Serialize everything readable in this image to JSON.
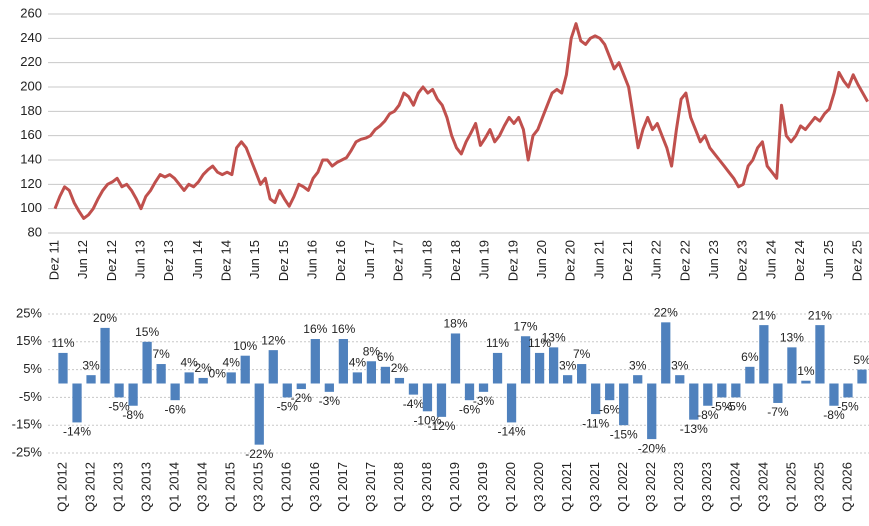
{
  "chart_data": [
    {
      "type": "line",
      "color": "#c0504d",
      "grid": true,
      "ylim": [
        80,
        260
      ],
      "yticks": [
        80,
        100,
        120,
        140,
        160,
        180,
        200,
        220,
        240,
        260
      ],
      "categories": [
        "Dez 11",
        null,
        null,
        null,
        null,
        null,
        "Jun 12",
        null,
        null,
        null,
        null,
        null,
        "Dez 12",
        null,
        null,
        null,
        null,
        null,
        "Jun 13",
        null,
        null,
        null,
        null,
        null,
        "Dez 13",
        null,
        null,
        null,
        null,
        null,
        "Jun 14",
        null,
        null,
        null,
        null,
        null,
        "Dez 14",
        null,
        null,
        null,
        null,
        null,
        "Jun 15",
        null,
        null,
        null,
        null,
        null,
        "Dez 15",
        null,
        null,
        null,
        null,
        null,
        "Jun 16",
        null,
        null,
        null,
        null,
        null,
        "Dez 16",
        null,
        null,
        null,
        null,
        null,
        "Jun 17",
        null,
        null,
        null,
        null,
        null,
        "Dez 17",
        null,
        null,
        null,
        null,
        null,
        "Jun 18",
        null,
        null,
        null,
        null,
        null,
        "Dez 18",
        null,
        null,
        null,
        null,
        null,
        "Jun 19",
        null,
        null,
        null,
        null,
        null,
        "Dez 19",
        null,
        null,
        null,
        null,
        null,
        "Jun 20",
        null,
        null,
        null,
        null,
        null,
        "Dez 20",
        null,
        null,
        null,
        null,
        null,
        "Jun 21",
        null,
        null,
        null,
        null,
        null,
        "Dez 21",
        null,
        null,
        null,
        null,
        null,
        "Jun 22",
        null,
        null,
        null,
        null,
        null,
        "Dez 22",
        null,
        null,
        null,
        null,
        null,
        "Jun 23",
        null,
        null,
        null,
        null,
        null,
        "Dez 23",
        null,
        null,
        null,
        null,
        null,
        "Jun 24",
        null,
        null,
        null,
        null,
        null,
        "Dez 24",
        null,
        null,
        null,
        null,
        null,
        "Jun 25",
        null,
        null,
        null,
        null,
        null,
        "Dez 25",
        null,
        null
      ],
      "values": [
        100,
        110,
        118,
        115,
        105,
        98,
        92,
        95,
        100,
        108,
        115,
        120,
        122,
        125,
        118,
        120,
        115,
        108,
        100,
        110,
        115,
        122,
        128,
        126,
        128,
        125,
        120,
        115,
        120,
        118,
        122,
        128,
        132,
        135,
        130,
        128,
        130,
        128,
        150,
        155,
        150,
        140,
        130,
        120,
        125,
        108,
        105,
        115,
        108,
        102,
        110,
        120,
        118,
        115,
        125,
        130,
        140,
        140,
        135,
        138,
        140,
        142,
        148,
        155,
        157,
        158,
        160,
        165,
        168,
        172,
        178,
        180,
        185,
        195,
        192,
        185,
        195,
        200,
        195,
        198,
        190,
        185,
        175,
        160,
        150,
        145,
        155,
        162,
        170,
        152,
        158,
        165,
        155,
        160,
        168,
        175,
        170,
        175,
        165,
        140,
        160,
        165,
        175,
        185,
        195,
        198,
        195,
        210,
        240,
        252,
        238,
        235,
        240,
        242,
        240,
        235,
        225,
        215,
        220,
        210,
        200,
        175,
        150,
        165,
        175,
        165,
        170,
        160,
        150,
        135,
        165,
        190,
        195,
        175,
        165,
        155,
        160,
        150,
        145,
        140,
        135,
        130,
        125,
        118,
        120,
        135,
        140,
        150,
        155,
        135,
        130,
        125,
        185,
        160,
        155,
        160,
        168,
        165,
        170,
        175,
        172,
        178,
        182,
        195,
        212,
        205,
        200,
        210,
        202,
        195,
        188
      ]
    },
    {
      "type": "bar",
      "color": "#4f81bd",
      "grid": true,
      "ylim": [
        -25,
        25
      ],
      "yticks": [
        {
          "value": -25,
          "label": "-25%"
        },
        {
          "value": -15,
          "label": "-15%"
        },
        {
          "value": -5,
          "label": "-5%"
        },
        {
          "value": 5,
          "label": "5%"
        },
        {
          "value": 15,
          "label": "15%"
        },
        {
          "value": 25,
          "label": "25%"
        }
      ],
      "categories": [
        "Q1 2012",
        null,
        "Q3 2012",
        null,
        "Q1 2013",
        null,
        "Q3 2013",
        null,
        "Q1 2014",
        null,
        "Q3 2014",
        null,
        "Q1 2015",
        null,
        "Q3 2015",
        null,
        "Q1 2016",
        null,
        "Q3 2016",
        null,
        "Q1 2017",
        null,
        "Q3 2017",
        null,
        "Q1 2018",
        null,
        "Q3 2018",
        null,
        "Q1 2019",
        null,
        "Q3 2019",
        null,
        "Q1 2020",
        null,
        "Q3 2020",
        null,
        "Q1 2021",
        null,
        "Q3 2021",
        null,
        "Q1 2022",
        null,
        "Q3 2022",
        null,
        "Q1 2023",
        null,
        "Q3 2023",
        null,
        "Q1 2024",
        null,
        "Q3 2024",
        null,
        "Q1 2025",
        null,
        "Q3 2025",
        null,
        "Q1 2026",
        null
      ],
      "values": [
        11,
        -14,
        3,
        20,
        -5,
        -8,
        15,
        7,
        -6,
        4,
        2,
        0,
        4,
        10,
        -22,
        12,
        -5,
        -2,
        16,
        -3,
        16,
        4,
        8,
        6,
        2,
        -4,
        -10,
        -12,
        18,
        -6,
        -3,
        11,
        -14,
        17,
        11,
        13,
        3,
        7,
        -11,
        -6,
        -15,
        3,
        -20,
        22,
        3,
        -13,
        -8,
        -5,
        -5,
        6,
        21,
        -7,
        13,
        1,
        21,
        -8,
        -5,
        5
      ],
      "value_labels": [
        "11%",
        "-14%",
        "3%",
        "20%",
        "-5%",
        "-8%",
        "15%",
        "7%",
        "-6%",
        "4%",
        "2%",
        "0%",
        "4%",
        "10%",
        "-22%",
        "12%",
        "-5%",
        "-2%",
        "16%",
        "-3%",
        "16%",
        "4%",
        "8%",
        "6%",
        "2%",
        "-4%",
        "-10%",
        "-12%",
        "18%",
        "-6%",
        "-3%",
        "11%",
        "-14%",
        "17%",
        "11%",
        "13%",
        "3%",
        "7%",
        "-11%",
        "-6%",
        "-15%",
        "3%",
        "-20%",
        "22%",
        "3%",
        "-13%",
        "-8%",
        "-5%",
        "-5%",
        "6%",
        "21%",
        "-7%",
        "13%",
        "1%",
        "21%",
        "-8%",
        "-5%",
        "5%"
      ]
    }
  ]
}
